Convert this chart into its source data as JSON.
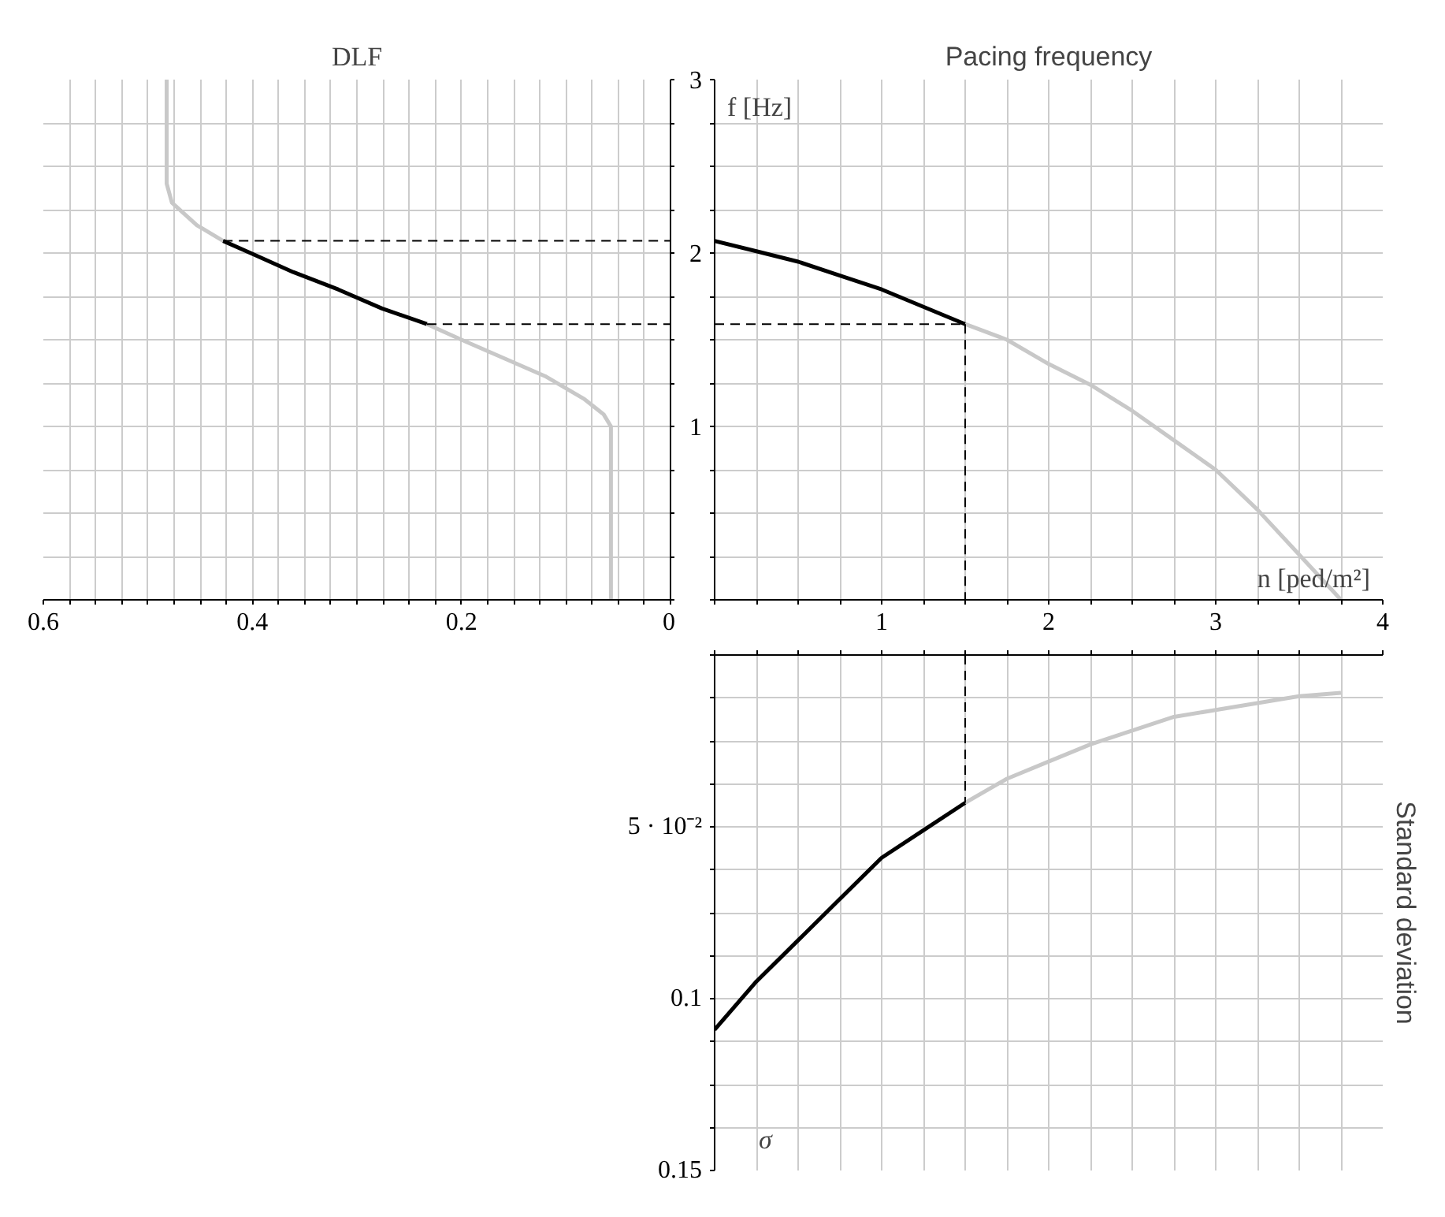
{
  "chart_data": [
    {
      "type": "line",
      "title": "DLF",
      "tick_labels": "x",
      "grid": true,
      "xlim": [
        0.6,
        0
      ],
      "ylim": [
        0,
        3
      ],
      "xticks": [
        0,
        {
          "value": 0.025,
          "label": null
        },
        {
          "value": 0.05,
          "label": null
        },
        {
          "value": 0.075,
          "label": null
        },
        {
          "value": 0.1,
          "label": null
        },
        {
          "value": 0.125,
          "label": null
        },
        {
          "value": 0.15,
          "label": null
        },
        {
          "value": 0.175,
          "label": null
        },
        0.2,
        {
          "value": 0.225,
          "label": null
        },
        {
          "value": 0.25,
          "label": null
        },
        {
          "value": 0.275,
          "label": null
        },
        {
          "value": 0.3,
          "label": null
        },
        {
          "value": 0.325,
          "label": null
        },
        {
          "value": 0.35,
          "label": null
        },
        {
          "value": 0.375,
          "label": null
        },
        0.4,
        {
          "value": 0.425,
          "label": null
        },
        {
          "value": 0.45,
          "label": null
        },
        {
          "value": 0.475,
          "label": null
        },
        {
          "value": 0.5,
          "label": null
        },
        {
          "value": 0.525,
          "label": null
        },
        {
          "value": 0.55,
          "label": null
        },
        {
          "value": 0.575,
          "label": null
        },
        0.6
      ],
      "yticks": [
        0,
        0.25,
        0.5,
        0.75,
        1,
        1.25,
        1.5,
        1.75,
        2,
        2.25,
        2.5,
        2.75,
        3
      ],
      "series": [
        {
          "color": "#c8c8c8",
          "line_style": "solid",
          "x": [
            0.482,
            0.482,
            0.477,
            0.453,
            0.428
          ],
          "values": [
            3,
            2.4,
            2.29,
            2.16,
            2.07
          ]
        },
        {
          "color": "#000000",
          "line_style": "solid",
          "x": [
            0.428,
            0.398,
            0.361,
            0.318,
            0.276,
            0.233
          ],
          "values": [
            2.07,
            1.99,
            1.89,
            1.79,
            1.68,
            1.59
          ]
        },
        {
          "color": "#c8c8c8",
          "line_style": "solid",
          "x": [
            0.233,
            0.2,
            0.158,
            0.12,
            0.083,
            0.064,
            0.057,
            0.057
          ],
          "values": [
            1.59,
            1.5,
            1.39,
            1.29,
            1.16,
            1.07,
            1.0,
            0
          ]
        },
        {
          "color": "#000000",
          "line_style": "dashed",
          "x": [
            0.428,
            0
          ],
          "values": [
            2.07,
            2.07
          ]
        },
        {
          "color": "#000000",
          "line_style": "dashed",
          "x": [
            0.233,
            0
          ],
          "values": [
            1.59,
            1.59
          ]
        }
      ]
    },
    {
      "type": "line",
      "title": "Pacing frequency",
      "xlabel": "n [ped/m²]",
      "ylabel": "f [Hz]",
      "grid": true,
      "xlim": [
        0,
        4
      ],
      "ylim": [
        0,
        3
      ],
      "xticks": [
        {
          "value": 0,
          "label": null
        },
        {
          "value": 0.25,
          "label": null
        },
        {
          "value": 0.5,
          "label": null
        },
        {
          "value": 0.75,
          "label": null
        },
        1,
        {
          "value": 1.25,
          "label": null
        },
        {
          "value": 1.5,
          "label": null
        },
        {
          "value": 1.75,
          "label": null
        },
        2,
        {
          "value": 2.25,
          "label": null
        },
        {
          "value": 2.5,
          "label": null
        },
        {
          "value": 2.75,
          "label": null
        },
        3,
        {
          "value": 3.25,
          "label": null
        },
        {
          "value": 3.5,
          "label": null
        },
        {
          "value": 3.75,
          "label": null
        },
        4
      ],
      "yticks": [
        {
          "value": 0,
          "label": null
        },
        {
          "value": 0.25,
          "label": null
        },
        {
          "value": 0.5,
          "label": null
        },
        {
          "value": 0.75,
          "label": null
        },
        1,
        {
          "value": 1.25,
          "label": null
        },
        {
          "value": 1.5,
          "label": null
        },
        {
          "value": 1.75,
          "label": null
        },
        2,
        {
          "value": 2.25,
          "label": null
        },
        {
          "value": 2.5,
          "label": null
        },
        {
          "value": 2.75,
          "label": null
        },
        3
      ],
      "series": [
        {
          "color": "#000000",
          "line_style": "solid",
          "x": [
            0,
            0.25,
            0.5,
            0.75,
            1,
            1.25,
            1.5
          ],
          "values": [
            2.07,
            2.01,
            1.95,
            1.87,
            1.79,
            1.69,
            1.59
          ]
        },
        {
          "color": "#c8c8c8",
          "line_style": "solid",
          "x": [
            1.5,
            1.75,
            2,
            2.25,
            2.5,
            2.75,
            3,
            3.25,
            3.5,
            3.75
          ],
          "values": [
            1.59,
            1.5,
            1.36,
            1.24,
            1.09,
            0.92,
            0.75,
            0.52,
            0.26,
            0
          ]
        },
        {
          "color": "#000000",
          "line_style": "dashed",
          "x": [
            0,
            1.5
          ],
          "values": [
            1.59,
            1.59
          ]
        },
        {
          "color": "#000000",
          "line_style": "dashed",
          "x": [
            1.5,
            1.5
          ],
          "values": [
            1.59,
            0
          ]
        }
      ]
    },
    {
      "type": "line",
      "title": "Standard deviation",
      "ylabel": "σ",
      "tick_labels": "y",
      "grid": true,
      "xlim": [
        0,
        4
      ],
      "ylim": [
        0.15,
        0
      ],
      "xticks": [
        0,
        0.25,
        0.5,
        0.75,
        1,
        1.25,
        1.5,
        1.75,
        2,
        2.25,
        2.5,
        2.75,
        3,
        3.25,
        3.5,
        3.75,
        4
      ],
      "yticks": [
        {
          "value": 0,
          "label": null
        },
        {
          "value": 0.0125,
          "label": null
        },
        {
          "value": 0.025,
          "label": null
        },
        {
          "value": 0.0375,
          "label": null
        },
        {
          "value": 0.05,
          "label": "5 · 10⁻²"
        },
        {
          "value": 0.0625,
          "label": null
        },
        {
          "value": 0.075,
          "label": null
        },
        {
          "value": 0.0875,
          "label": null
        },
        0.1,
        {
          "value": 0.1125,
          "label": null
        },
        {
          "value": 0.125,
          "label": null
        },
        {
          "value": 0.1375,
          "label": null
        },
        0.15
      ],
      "series": [
        {
          "color": "#000000",
          "line_style": "solid",
          "x": [
            0,
            0.25,
            0.5,
            0.75,
            1,
            1.25,
            1.5
          ],
          "values": [
            0.109,
            0.095,
            0.083,
            0.071,
            0.059,
            0.051,
            0.043
          ]
        },
        {
          "color": "#c8c8c8",
          "line_style": "solid",
          "x": [
            1.5,
            1.75,
            2,
            2.25,
            2.5,
            2.75,
            3,
            3.25,
            3.5,
            3.75
          ],
          "values": [
            0.043,
            0.036,
            0.031,
            0.026,
            0.022,
            0.018,
            0.016,
            0.014,
            0.012,
            0.011
          ]
        },
        {
          "color": "#000000",
          "line_style": "dashed",
          "x": [
            1.5,
            1.5
          ],
          "values": [
            0,
            0.043
          ]
        }
      ]
    }
  ]
}
